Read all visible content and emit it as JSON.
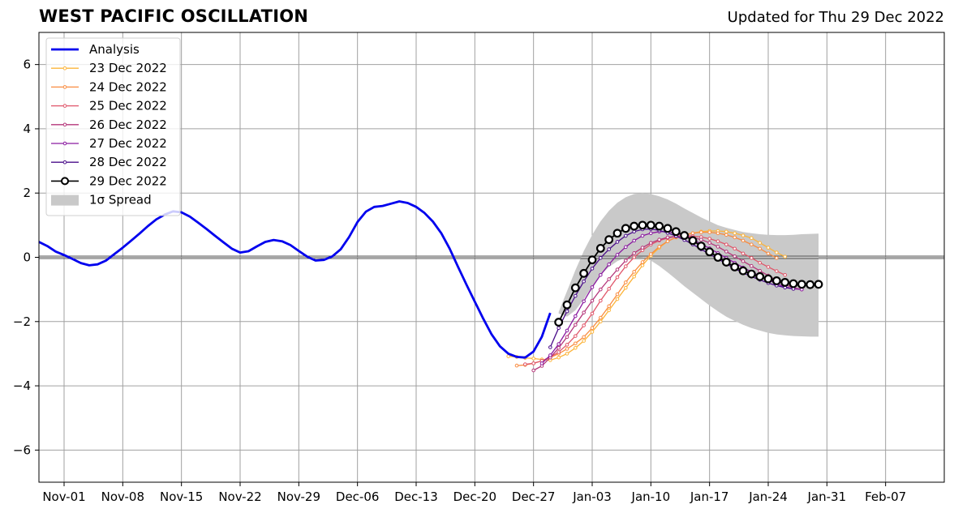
{
  "header": {
    "title": "WEST PACIFIC OSCILLATION",
    "updated": "Updated for Thu 29 Dec 2022"
  },
  "chart_data": {
    "type": "line",
    "title": "WEST PACIFIC OSCILLATION",
    "subtitle": "Updated for Thu 29 Dec 2022",
    "x_unit": "date",
    "xlim": [
      "2022-10-29",
      "2023-02-14"
    ],
    "ylim": [
      -7,
      7
    ],
    "grid": true,
    "legend_position": "top-left",
    "x_ticks": [
      {
        "date": "2022-11-01",
        "label": "Nov-01"
      },
      {
        "date": "2022-11-08",
        "label": "Nov-08"
      },
      {
        "date": "2022-11-15",
        "label": "Nov-15"
      },
      {
        "date": "2022-11-22",
        "label": "Nov-22"
      },
      {
        "date": "2022-11-29",
        "label": "Nov-29"
      },
      {
        "date": "2022-12-06",
        "label": "Dec-06"
      },
      {
        "date": "2022-12-13",
        "label": "Dec-13"
      },
      {
        "date": "2022-12-20",
        "label": "Dec-20"
      },
      {
        "date": "2022-12-27",
        "label": "Dec-27"
      },
      {
        "date": "2023-01-03",
        "label": "Jan-03"
      },
      {
        "date": "2023-01-10",
        "label": "Jan-10"
      },
      {
        "date": "2023-01-17",
        "label": "Jan-17"
      },
      {
        "date": "2023-01-24",
        "label": "Jan-24"
      },
      {
        "date": "2023-01-31",
        "label": "Jan-31"
      },
      {
        "date": "2023-02-07",
        "label": "Feb-07"
      }
    ],
    "y_ticks": [
      {
        "value": 6,
        "label": "6"
      },
      {
        "value": 4,
        "label": "4"
      },
      {
        "value": 2,
        "label": "2"
      },
      {
        "value": 0,
        "label": "0"
      },
      {
        "value": -2,
        "label": "−2"
      },
      {
        "value": -4,
        "label": "−4"
      },
      {
        "value": -6,
        "label": "−6"
      }
    ],
    "analysis": {
      "name": "Analysis",
      "color": "#0000ee",
      "start": "2022-10-29",
      "values": [
        0.48,
        0.35,
        0.18,
        0.07,
        -0.05,
        -0.18,
        -0.25,
        -0.22,
        -0.1,
        0.1,
        0.3,
        0.52,
        0.74,
        0.97,
        1.18,
        1.33,
        1.43,
        1.4,
        1.27,
        1.08,
        0.88,
        0.67,
        0.47,
        0.27,
        0.15,
        0.19,
        0.34,
        0.48,
        0.54,
        0.5,
        0.38,
        0.2,
        0.02,
        -0.1,
        -0.08,
        0.03,
        0.25,
        0.63,
        1.1,
        1.42,
        1.57,
        1.6,
        1.67,
        1.74,
        1.69,
        1.57,
        1.38,
        1.11,
        0.75,
        0.27,
        -0.3,
        -0.85,
        -1.38,
        -1.91,
        -2.4,
        -2.77,
        -3.0,
        -3.1,
        -3.12,
        -2.93,
        -2.47,
        -1.73
      ]
    },
    "series": [
      {
        "name": "23 Dec 2022",
        "color": "#fcb43a",
        "start": "2022-12-24",
        "values": [
          -3.08,
          -3.1,
          -3.13,
          -3.15,
          -3.18,
          -3.2,
          -3.12,
          -3.0,
          -2.82,
          -2.6,
          -2.32,
          -2.0,
          -1.65,
          -1.3,
          -0.95,
          -0.6,
          -0.25,
          0.05,
          0.3,
          0.5,
          0.62,
          0.7,
          0.75,
          0.8,
          0.82,
          0.82,
          0.8,
          0.75,
          0.68,
          0.6,
          0.45,
          0.3,
          0.15,
          0.02
        ]
      },
      {
        "name": "24 Dec 2022",
        "color": "#f98c40",
        "start": "2022-12-25",
        "values": [
          -3.37,
          -3.35,
          -3.3,
          -3.22,
          -3.12,
          -3.0,
          -2.85,
          -2.68,
          -2.48,
          -2.2,
          -1.88,
          -1.52,
          -1.15,
          -0.78,
          -0.45,
          -0.15,
          0.1,
          0.33,
          0.5,
          0.62,
          0.7,
          0.75,
          0.78,
          0.78,
          0.75,
          0.7,
          0.62,
          0.52,
          0.4,
          0.27,
          0.12,
          -0.02
        ]
      },
      {
        "name": "25 Dec 2022",
        "color": "#e0566a",
        "start": "2022-12-26",
        "values": [
          -3.33,
          -3.3,
          -3.22,
          -3.1,
          -2.95,
          -2.72,
          -2.45,
          -2.12,
          -1.75,
          -1.35,
          -0.98,
          -0.62,
          -0.28,
          0.0,
          0.22,
          0.4,
          0.52,
          0.6,
          0.65,
          0.67,
          0.66,
          0.63,
          0.58,
          0.5,
          0.4,
          0.27,
          0.12,
          -0.02,
          -0.17,
          -0.3,
          -0.43,
          -0.55
        ]
      },
      {
        "name": "26 Dec 2022",
        "color": "#b5367a",
        "start": "2022-12-27",
        "values": [
          -3.52,
          -3.38,
          -3.12,
          -2.82,
          -2.48,
          -2.1,
          -1.72,
          -1.35,
          -1.0,
          -0.68,
          -0.38,
          -0.1,
          0.13,
          0.3,
          0.45,
          0.55,
          0.62,
          0.65,
          0.66,
          0.62,
          0.55,
          0.45,
          0.33,
          0.18,
          0.03,
          -0.12,
          -0.27,
          -0.42,
          -0.57,
          -0.72,
          -0.85,
          -0.95,
          -1.0
        ]
      },
      {
        "name": "27 Dec 2022",
        "color": "#8a1aa0",
        "start": "2022-12-28",
        "values": [
          -3.3,
          -3.05,
          -2.7,
          -2.28,
          -1.83,
          -1.37,
          -0.93,
          -0.55,
          -0.22,
          0.08,
          0.32,
          0.52,
          0.67,
          0.75,
          0.8,
          0.8,
          0.75,
          0.67,
          0.55,
          0.42,
          0.28,
          0.13,
          -0.02,
          -0.17,
          -0.32,
          -0.45,
          -0.58,
          -0.7,
          -0.82,
          -0.92,
          -0.98,
          -1.0
        ]
      },
      {
        "name": "28 Dec 2022",
        "color": "#4a0c8a",
        "start": "2022-12-29",
        "values": [
          -2.8,
          -2.2,
          -1.68,
          -1.2,
          -0.75,
          -0.35,
          -0.02,
          0.25,
          0.48,
          0.67,
          0.8,
          0.87,
          0.88,
          0.84,
          0.76,
          0.66,
          0.54,
          0.4,
          0.25,
          0.1,
          -0.05,
          -0.2,
          -0.35,
          -0.48,
          -0.6,
          -0.7,
          -0.8,
          -0.88,
          -0.94,
          -0.98
        ]
      },
      {
        "name": "29 Dec 2022",
        "color": "#000000",
        "start": "2022-12-30",
        "values": [
          -2.02,
          -1.48,
          -0.95,
          -0.5,
          -0.08,
          0.28,
          0.55,
          0.75,
          0.9,
          0.97,
          1.0,
          1.0,
          0.97,
          0.9,
          0.8,
          0.68,
          0.52,
          0.35,
          0.17,
          0.0,
          -0.15,
          -0.3,
          -0.42,
          -0.52,
          -0.6,
          -0.67,
          -0.73,
          -0.78,
          -0.82,
          -0.84,
          -0.85,
          -0.84
        ]
      }
    ],
    "spread": {
      "name": "1σ Spread",
      "color": "#c9c9c9",
      "start": "2022-12-30",
      "upper": [
        -1.7,
        -1.05,
        -0.4,
        0.2,
        0.7,
        1.12,
        1.45,
        1.7,
        1.87,
        1.97,
        2.0,
        1.97,
        1.9,
        1.8,
        1.67,
        1.52,
        1.38,
        1.24,
        1.12,
        1.0,
        0.92,
        0.85,
        0.79,
        0.75,
        0.72,
        0.7,
        0.69,
        0.69,
        0.7,
        0.72,
        0.73,
        0.74
      ],
      "lower": [
        -1.75,
        -1.85,
        -1.65,
        -1.3,
        -0.9,
        -0.55,
        -0.3,
        -0.12,
        0.0,
        0.03,
        0.0,
        -0.1,
        -0.27,
        -0.47,
        -0.68,
        -0.9,
        -1.1,
        -1.3,
        -1.5,
        -1.68,
        -1.85,
        -1.98,
        -2.1,
        -2.2,
        -2.28,
        -2.35,
        -2.4,
        -2.43,
        -2.45,
        -2.46,
        -2.47,
        -2.47
      ]
    }
  }
}
